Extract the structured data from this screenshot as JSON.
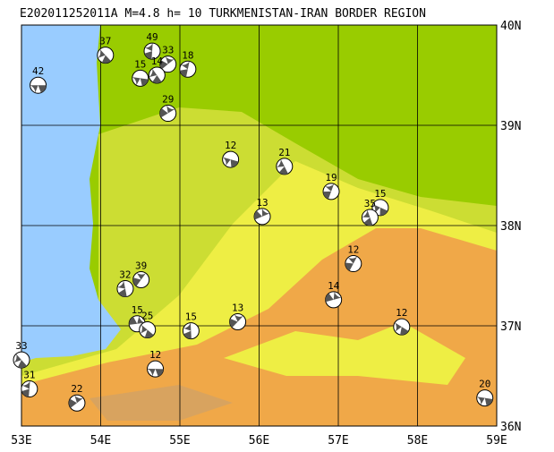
{
  "chart_data": {
    "type": "map",
    "title": "E202011252011A M=4.8 h= 10 TURKMENISTAN-IRAN BORDER REGION",
    "xlim": [
      53,
      59
    ],
    "ylim": [
      36,
      40
    ],
    "xticks": [
      {
        "value": 53,
        "label": "53E"
      },
      {
        "value": 54,
        "label": "54E"
      },
      {
        "value": 55,
        "label": "55E"
      },
      {
        "value": 56,
        "label": "56E"
      },
      {
        "value": 57,
        "label": "57E"
      },
      {
        "value": 58,
        "label": "58E"
      },
      {
        "value": 59,
        "label": "59E"
      }
    ],
    "yticks": [
      {
        "value": 36,
        "label": "36N"
      },
      {
        "value": 37,
        "label": "37N"
      },
      {
        "value": 38,
        "label": "38N"
      },
      {
        "value": 39,
        "label": "39N"
      },
      {
        "value": 40,
        "label": "40N"
      }
    ],
    "grid": true,
    "events": [
      {
        "depth": 42,
        "lon": 53.21,
        "lat": 39.4
      },
      {
        "depth": 37,
        "lon": 54.06,
        "lat": 39.7
      },
      {
        "depth": 49,
        "lon": 54.65,
        "lat": 39.74
      },
      {
        "depth": 33,
        "lon": 54.85,
        "lat": 39.61
      },
      {
        "depth": 15,
        "lon": 54.5,
        "lat": 39.47
      },
      {
        "depth": 14,
        "lon": 54.71,
        "lat": 39.5
      },
      {
        "depth": 18,
        "lon": 55.1,
        "lat": 39.56
      },
      {
        "depth": 29,
        "lon": 54.85,
        "lat": 39.12
      },
      {
        "depth": 12,
        "lon": 55.64,
        "lat": 38.66
      },
      {
        "depth": 21,
        "lon": 56.32,
        "lat": 38.59
      },
      {
        "depth": 19,
        "lon": 56.91,
        "lat": 38.34
      },
      {
        "depth": 13,
        "lon": 56.04,
        "lat": 38.09
      },
      {
        "depth": 15,
        "lon": 57.53,
        "lat": 38.18
      },
      {
        "depth": 35,
        "lon": 57.4,
        "lat": 38.08
      },
      {
        "depth": 12,
        "lon": 57.19,
        "lat": 37.62
      },
      {
        "depth": 14,
        "lon": 56.94,
        "lat": 37.26
      },
      {
        "depth": 12,
        "lon": 57.8,
        "lat": 36.99
      },
      {
        "depth": 32,
        "lon": 54.31,
        "lat": 37.37
      },
      {
        "depth": 39,
        "lon": 54.51,
        "lat": 37.46
      },
      {
        "depth": 15,
        "lon": 54.46,
        "lat": 37.02
      },
      {
        "depth": 25,
        "lon": 54.59,
        "lat": 36.96
      },
      {
        "depth": 15,
        "lon": 55.14,
        "lat": 36.95
      },
      {
        "depth": 13,
        "lon": 55.73,
        "lat": 37.04
      },
      {
        "depth": 12,
        "lon": 54.69,
        "lat": 36.57
      },
      {
        "depth": 33,
        "lon": 53.0,
        "lat": 36.66
      },
      {
        "depth": 31,
        "lon": 53.1,
        "lat": 36.37
      },
      {
        "depth": 22,
        "lon": 53.7,
        "lat": 36.23
      },
      {
        "depth": 20,
        "lon": 58.85,
        "lat": 36.28
      }
    ]
  }
}
